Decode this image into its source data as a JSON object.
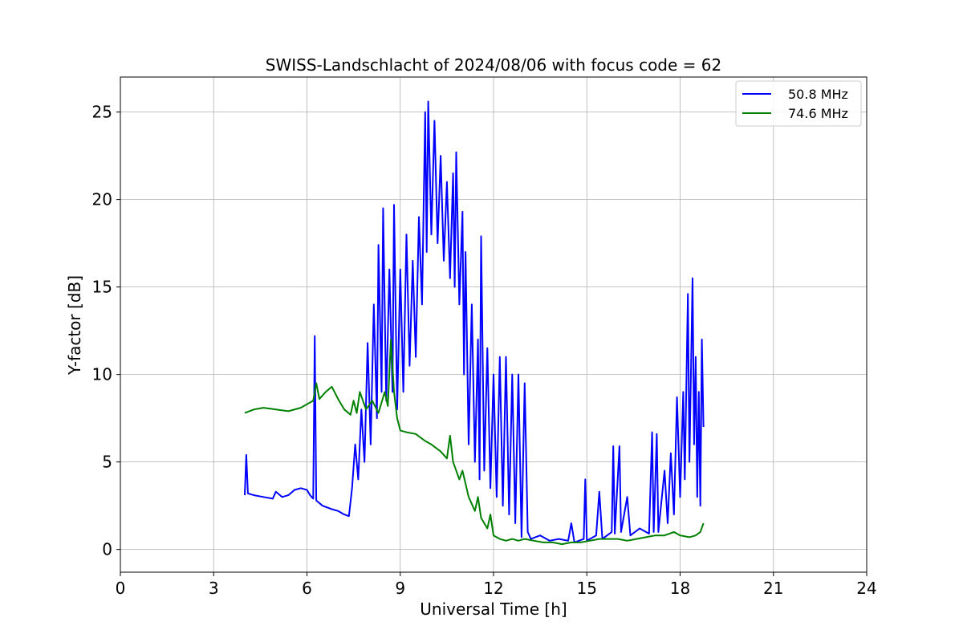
{
  "chart_data": {
    "type": "line",
    "title": "SWISS-Landschlacht of 2024/08/06 with focus code = 62",
    "xlabel": "Universal Time [h]",
    "ylabel": "Y-factor [dB]",
    "xlim": [
      0,
      24
    ],
    "ylim": [
      -1.3,
      27
    ],
    "xticks": [
      0,
      3,
      6,
      9,
      12,
      15,
      18,
      21,
      24
    ],
    "yticks": [
      0,
      5,
      10,
      15,
      20,
      25
    ],
    "grid": true,
    "legend": {
      "placement": "top-right"
    },
    "series": [
      {
        "name": "50.8 MHz",
        "color": "#0000ff",
        "points": [
          [
            4.0,
            3.1
          ],
          [
            4.05,
            5.4
          ],
          [
            4.1,
            3.2
          ],
          [
            4.3,
            3.1
          ],
          [
            4.6,
            3.0
          ],
          [
            4.9,
            2.9
          ],
          [
            5.0,
            3.3
          ],
          [
            5.2,
            3.0
          ],
          [
            5.4,
            3.1
          ],
          [
            5.6,
            3.4
          ],
          [
            5.8,
            3.5
          ],
          [
            6.0,
            3.4
          ],
          [
            6.1,
            3.1
          ],
          [
            6.2,
            2.9
          ],
          [
            6.25,
            12.2
          ],
          [
            6.3,
            2.8
          ],
          [
            6.5,
            2.5
          ],
          [
            6.8,
            2.3
          ],
          [
            7.0,
            2.2
          ],
          [
            7.2,
            2.0
          ],
          [
            7.35,
            1.9
          ],
          [
            7.45,
            3.5
          ],
          [
            7.55,
            6.0
          ],
          [
            7.65,
            4.0
          ],
          [
            7.75,
            8.0
          ],
          [
            7.85,
            5.0
          ],
          [
            7.95,
            11.8
          ],
          [
            8.05,
            6.0
          ],
          [
            8.15,
            14.0
          ],
          [
            8.25,
            7.5
          ],
          [
            8.3,
            17.4
          ],
          [
            8.4,
            9.0
          ],
          [
            8.45,
            19.5
          ],
          [
            8.55,
            8.5
          ],
          [
            8.65,
            16.0
          ],
          [
            8.75,
            9.0
          ],
          [
            8.8,
            19.7
          ],
          [
            8.9,
            8.0
          ],
          [
            9.0,
            16.0
          ],
          [
            9.1,
            9.0
          ],
          [
            9.2,
            18.0
          ],
          [
            9.3,
            10.5
          ],
          [
            9.4,
            16.5
          ],
          [
            9.5,
            11.0
          ],
          [
            9.6,
            19.0
          ],
          [
            9.7,
            14.0
          ],
          [
            9.8,
            25.0
          ],
          [
            9.85,
            17.0
          ],
          [
            9.9,
            25.6
          ],
          [
            10.0,
            18.0
          ],
          [
            10.1,
            24.5
          ],
          [
            10.2,
            17.5
          ],
          [
            10.3,
            22.5
          ],
          [
            10.4,
            16.5
          ],
          [
            10.5,
            21.0
          ],
          [
            10.6,
            15.5
          ],
          [
            10.7,
            21.5
          ],
          [
            10.75,
            15.0
          ],
          [
            10.8,
            22.7
          ],
          [
            10.9,
            14.0
          ],
          [
            11.0,
            19.3
          ],
          [
            11.05,
            10.0
          ],
          [
            11.1,
            17.0
          ],
          [
            11.2,
            6.0
          ],
          [
            11.3,
            14.0
          ],
          [
            11.4,
            5.0
          ],
          [
            11.5,
            12.0
          ],
          [
            11.55,
            4.0
          ],
          [
            11.6,
            17.9
          ],
          [
            11.7,
            4.5
          ],
          [
            11.8,
            11.5
          ],
          [
            11.9,
            3.5
          ],
          [
            12.0,
            10.0
          ],
          [
            12.1,
            3.0
          ],
          [
            12.2,
            11.0
          ],
          [
            12.3,
            2.5
          ],
          [
            12.4,
            11.0
          ],
          [
            12.5,
            2.0
          ],
          [
            12.6,
            10.0
          ],
          [
            12.7,
            1.5
          ],
          [
            12.8,
            10.0
          ],
          [
            12.9,
            0.7
          ],
          [
            13.0,
            9.5
          ],
          [
            13.1,
            1.0
          ],
          [
            13.2,
            0.6
          ],
          [
            13.5,
            0.8
          ],
          [
            13.8,
            0.5
          ],
          [
            14.1,
            0.6
          ],
          [
            14.4,
            0.5
          ],
          [
            14.5,
            1.5
          ],
          [
            14.6,
            0.4
          ],
          [
            14.9,
            0.6
          ],
          [
            14.95,
            4.0
          ],
          [
            15.0,
            0.5
          ],
          [
            15.3,
            0.8
          ],
          [
            15.4,
            3.3
          ],
          [
            15.5,
            0.6
          ],
          [
            15.8,
            1.0
          ],
          [
            15.85,
            5.9
          ],
          [
            15.9,
            0.9
          ],
          [
            16.05,
            5.9
          ],
          [
            16.1,
            1.0
          ],
          [
            16.3,
            3.0
          ],
          [
            16.4,
            0.8
          ],
          [
            16.7,
            1.2
          ],
          [
            17.0,
            0.9
          ],
          [
            17.1,
            6.7
          ],
          [
            17.15,
            1.0
          ],
          [
            17.25,
            6.6
          ],
          [
            17.3,
            1.0
          ],
          [
            17.5,
            4.5
          ],
          [
            17.6,
            1.5
          ],
          [
            17.7,
            5.5
          ],
          [
            17.8,
            2.0
          ],
          [
            17.9,
            8.7
          ],
          [
            18.0,
            3.0
          ],
          [
            18.1,
            9.0
          ],
          [
            18.15,
            4.0
          ],
          [
            18.25,
            14.6
          ],
          [
            18.3,
            5.0
          ],
          [
            18.4,
            15.5
          ],
          [
            18.45,
            6.0
          ],
          [
            18.5,
            11.0
          ],
          [
            18.55,
            3.0
          ],
          [
            18.6,
            9.0
          ],
          [
            18.65,
            2.5
          ],
          [
            18.7,
            12.0
          ],
          [
            18.75,
            7.0
          ]
        ]
      },
      {
        "name": "74.6 MHz",
        "color": "#008000",
        "points": [
          [
            4.0,
            7.8
          ],
          [
            4.3,
            8.0
          ],
          [
            4.6,
            8.1
          ],
          [
            5.0,
            8.0
          ],
          [
            5.4,
            7.9
          ],
          [
            5.8,
            8.1
          ],
          [
            6.0,
            8.3
          ],
          [
            6.2,
            8.5
          ],
          [
            6.3,
            9.5
          ],
          [
            6.4,
            8.6
          ],
          [
            6.6,
            9.0
          ],
          [
            6.8,
            9.3
          ],
          [
            7.0,
            8.6
          ],
          [
            7.2,
            8.0
          ],
          [
            7.4,
            7.7
          ],
          [
            7.5,
            8.5
          ],
          [
            7.6,
            7.8
          ],
          [
            7.7,
            9.0
          ],
          [
            7.9,
            8.0
          ],
          [
            8.1,
            8.5
          ],
          [
            8.3,
            7.8
          ],
          [
            8.5,
            9.0
          ],
          [
            8.6,
            8.2
          ],
          [
            8.7,
            12.0
          ],
          [
            8.8,
            9.0
          ],
          [
            8.9,
            7.5
          ],
          [
            9.0,
            6.8
          ],
          [
            9.2,
            6.7
          ],
          [
            9.5,
            6.6
          ],
          [
            9.8,
            6.2
          ],
          [
            10.0,
            6.0
          ],
          [
            10.3,
            5.6
          ],
          [
            10.5,
            5.2
          ],
          [
            10.6,
            6.5
          ],
          [
            10.7,
            5.0
          ],
          [
            10.9,
            4.0
          ],
          [
            11.0,
            4.5
          ],
          [
            11.2,
            3.0
          ],
          [
            11.4,
            2.2
          ],
          [
            11.5,
            3.0
          ],
          [
            11.6,
            1.8
          ],
          [
            11.8,
            1.2
          ],
          [
            11.9,
            2.0
          ],
          [
            12.0,
            0.8
          ],
          [
            12.2,
            0.6
          ],
          [
            12.4,
            0.5
          ],
          [
            12.6,
            0.6
          ],
          [
            12.8,
            0.5
          ],
          [
            13.0,
            0.6
          ],
          [
            13.3,
            0.5
          ],
          [
            13.6,
            0.4
          ],
          [
            13.9,
            0.4
          ],
          [
            14.2,
            0.3
          ],
          [
            14.5,
            0.4
          ],
          [
            14.8,
            0.4
          ],
          [
            15.1,
            0.5
          ],
          [
            15.4,
            0.6
          ],
          [
            15.7,
            0.6
          ],
          [
            16.0,
            0.6
          ],
          [
            16.3,
            0.5
          ],
          [
            16.6,
            0.6
          ],
          [
            16.9,
            0.7
          ],
          [
            17.2,
            0.8
          ],
          [
            17.5,
            0.8
          ],
          [
            17.8,
            1.0
          ],
          [
            18.0,
            0.8
          ],
          [
            18.3,
            0.7
          ],
          [
            18.5,
            0.8
          ],
          [
            18.65,
            1.0
          ],
          [
            18.75,
            1.5
          ]
        ]
      }
    ]
  }
}
